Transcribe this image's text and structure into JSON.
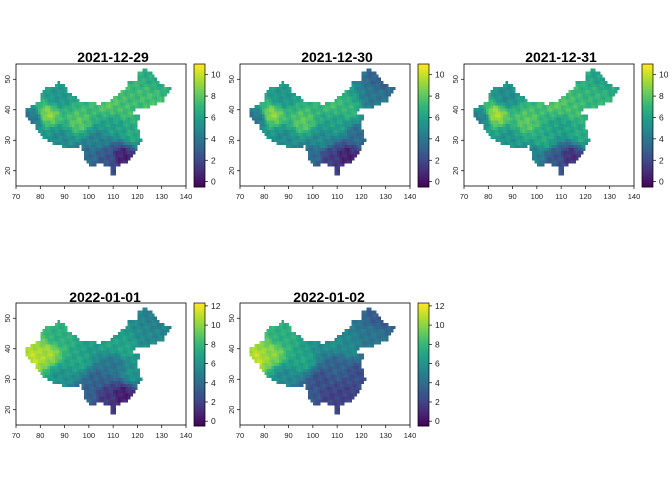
{
  "chart_data": [
    {
      "type": "heatmap",
      "title": "2021-12-29",
      "x_ticks": [
        70,
        80,
        90,
        100,
        110,
        120,
        130,
        140
      ],
      "y_ticks": [
        20,
        30,
        40,
        50
      ],
      "xlim": [
        70,
        140
      ],
      "ylim": [
        15,
        55
      ],
      "legend_ticks": [
        0,
        2,
        4,
        6,
        8,
        10
      ],
      "legend_range": [
        -0.5,
        11
      ],
      "legend_position": "right",
      "colormap": "viridis",
      "region_values": {
        "southeast": 0.5,
        "south": 2.5,
        "sichuan": 4.5,
        "east": 6.5,
        "central": 6.0,
        "north": 7.5,
        "northeast": 7.5,
        "tibet": 5.0,
        "xinjiang": 5.5,
        "taklamakan": 9.0,
        "west_xinjiang": 4.0,
        "qinghai": 8.0,
        "inner_mongolia": 8.0,
        "far_northeast": 6.5,
        "yunnan": 3.5
      }
    },
    {
      "type": "heatmap",
      "title": "2021-12-30",
      "x_ticks": [
        70,
        80,
        90,
        100,
        110,
        120,
        130,
        140
      ],
      "y_ticks": [
        20,
        30,
        40,
        50
      ],
      "xlim": [
        70,
        140
      ],
      "ylim": [
        15,
        55
      ],
      "legend_ticks": [
        0,
        2,
        4,
        6,
        8,
        10
      ],
      "legend_range": [
        -0.5,
        11
      ],
      "legend_position": "right",
      "colormap": "viridis",
      "region_values": {
        "southeast": 0.5,
        "south": 1.5,
        "sichuan": 5.0,
        "east": 3.5,
        "central": 6.0,
        "north": 7.0,
        "northeast": 4.0,
        "tibet": 5.0,
        "xinjiang": 5.5,
        "taklamakan": 9.0,
        "west_xinjiang": 4.0,
        "qinghai": 8.0,
        "inner_mongolia": 7.5,
        "far_northeast": 3.0,
        "yunnan": 3.5
      }
    },
    {
      "type": "heatmap",
      "title": "2021-12-31",
      "x_ticks": [
        70,
        80,
        90,
        100,
        110,
        120,
        130,
        140
      ],
      "y_ticks": [
        20,
        30,
        40,
        50
      ],
      "xlim": [
        70,
        140
      ],
      "ylim": [
        15,
        55
      ],
      "legend_ticks": [
        0,
        2,
        4,
        6,
        8,
        10
      ],
      "legend_range": [
        -0.5,
        11
      ],
      "legend_position": "right",
      "colormap": "viridis",
      "region_values": {
        "southeast": 1.0,
        "south": 2.5,
        "sichuan": 6.5,
        "east": 6.5,
        "central": 6.0,
        "north": 7.5,
        "northeast": 7.0,
        "tibet": 5.5,
        "xinjiang": 5.0,
        "taklamakan": 9.5,
        "west_xinjiang": 4.5,
        "qinghai": 8.0,
        "inner_mongolia": 8.0,
        "far_northeast": 6.0,
        "yunnan": 4.5
      }
    },
    {
      "type": "heatmap",
      "title": "2022-01-01",
      "x_ticks": [
        70,
        80,
        90,
        100,
        110,
        120,
        130,
        140
      ],
      "y_ticks": [
        20,
        30,
        40,
        50
      ],
      "xlim": [
        70,
        140
      ],
      "ylim": [
        15,
        55
      ],
      "legend_ticks": [
        0,
        2,
        4,
        6,
        8,
        10,
        12
      ],
      "legend_range": [
        -0.5,
        12.3
      ],
      "legend_position": "right",
      "colormap": "viridis",
      "region_values": {
        "southeast": 0.5,
        "south": 1.5,
        "sichuan": 3.5,
        "east": 6.0,
        "central": 4.5,
        "north": 7.0,
        "northeast": 5.5,
        "tibet": 6.0,
        "xinjiang": 7.5,
        "taklamakan": 10.5,
        "west_xinjiang": 11.0,
        "qinghai": 7.0,
        "inner_mongolia": 7.0,
        "far_northeast": 5.0,
        "yunnan": 3.5
      }
    },
    {
      "type": "heatmap",
      "title": "2022-01-02",
      "x_ticks": [
        70,
        80,
        90,
        100,
        110,
        120,
        130,
        140
      ],
      "y_ticks": [
        20,
        30,
        40,
        50
      ],
      "xlim": [
        70,
        140
      ],
      "ylim": [
        15,
        55
      ],
      "legend_ticks": [
        0,
        2,
        4,
        6,
        8,
        10,
        12
      ],
      "legend_range": [
        -0.5,
        12.3
      ],
      "legend_position": "right",
      "colormap": "viridis",
      "region_values": {
        "southeast": 2.0,
        "south": 2.0,
        "sichuan": 2.5,
        "east": 2.5,
        "central": 3.5,
        "north": 5.5,
        "northeast": 4.5,
        "tibet": 5.5,
        "xinjiang": 7.5,
        "taklamakan": 10.0,
        "west_xinjiang": 11.0,
        "qinghai": 7.0,
        "inner_mongolia": 6.0,
        "far_northeast": 3.0,
        "yunnan": 3.0
      }
    }
  ]
}
